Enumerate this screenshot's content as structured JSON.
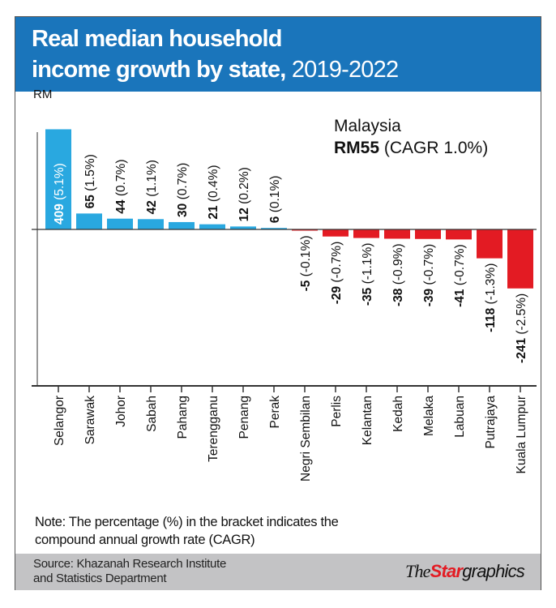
{
  "header": {
    "title_bold_line1": "Real median household",
    "title_bold_line2": "income growth by state,",
    "title_light": "2019-2022"
  },
  "colors": {
    "header": "#1a75bb",
    "positive": "#29a8e0",
    "negative": "#e31b23",
    "footer": "#c3c3c5"
  },
  "chart_data": {
    "type": "bar",
    "ylabel": "RM",
    "categories": [
      "Selangor",
      "Sarawak",
      "Johor",
      "Sabah",
      "Pahang",
      "Terengganu",
      "Penang",
      "Perak",
      "Negri Sembilan",
      "Perlis",
      "Kelantan",
      "Kedah",
      "Melaka",
      "Labuan",
      "Putrajaya",
      "Kuala Lumpur"
    ],
    "values": [
      409,
      65,
      44,
      42,
      30,
      21,
      12,
      6,
      -5,
      -29,
      -35,
      -38,
      -39,
      -41,
      -118,
      -241
    ],
    "cagr_labels": [
      "(5.1%)",
      "(1.5%)",
      "(0.7%)",
      "(1.1%)",
      "(0.7%)",
      "(0.4%)",
      "(0.2%)",
      "(0.1%)",
      "(-0.1%)",
      "(-0.7%)",
      "(-1.1%)",
      "(-0.9%)",
      "(-0.7%)",
      "(-0.7%)",
      "(-1.3%)",
      "(-2.5%)"
    ],
    "annotation": {
      "line1": "Malaysia",
      "value": "RM55",
      "cagr": "(CAGR 1.0%)"
    },
    "grid": false,
    "legend": "none"
  },
  "note": {
    "line1": "Note: The percentage (%) in the bracket indicates the",
    "line2": "compound annual growth rate (CAGR)"
  },
  "footer": {
    "source_line1": "Source: Khazanah Research Institute",
    "source_line2": "and Statistics Department",
    "logo_the": "The",
    "logo_star": "Star",
    "logo_graphics": "graphics"
  }
}
